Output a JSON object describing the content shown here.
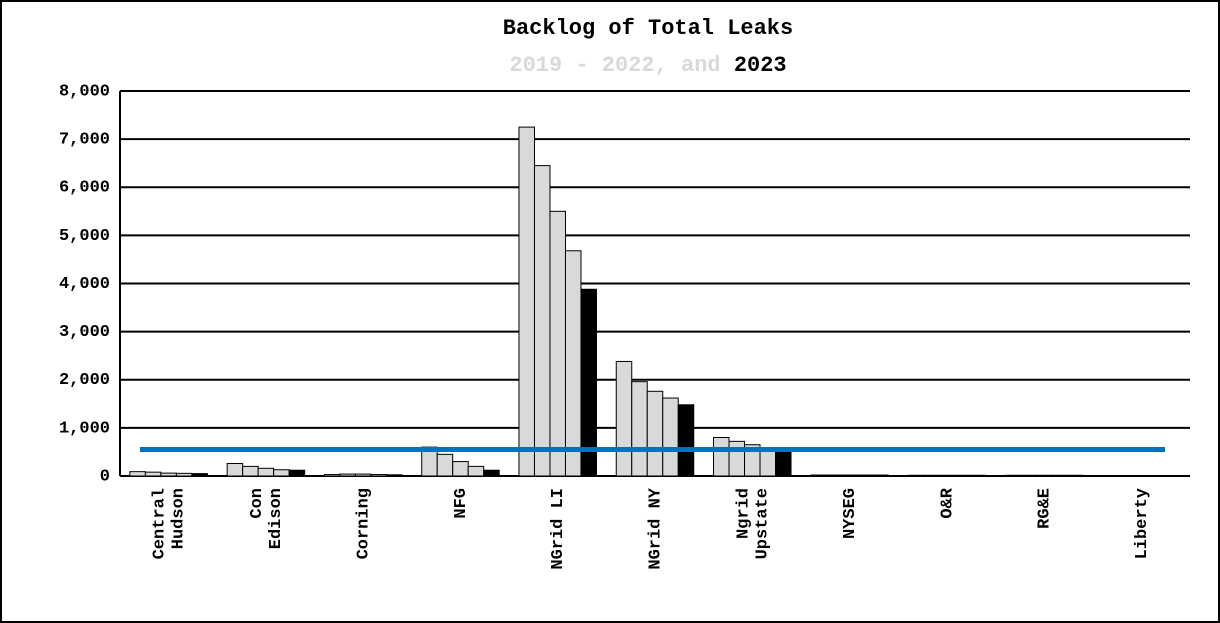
{
  "chart_data": {
    "type": "bar",
    "title": "Backlog of Total Leaks",
    "subtitle": [
      "2019 - 2022, and",
      "2023"
    ],
    "subtitle_colors": [
      "#d9d9d9",
      "#000000"
    ],
    "categories": [
      [
        "Central",
        "Hudson"
      ],
      [
        "Con",
        "Edison"
      ],
      [
        "Corning"
      ],
      [
        "NFG"
      ],
      [
        "NGrid LI"
      ],
      [
        "NGrid NY"
      ],
      [
        "Ngrid",
        "Upstate"
      ],
      [
        "NYSEG"
      ],
      [
        "O&R"
      ],
      [
        "RG&E"
      ],
      [
        "Liberty"
      ]
    ],
    "series": [
      {
        "color": "#d9d9d9",
        "values": [
          90,
          260,
          30,
          600,
          7250,
          2380,
          800,
          20,
          15,
          15,
          0
        ]
      },
      {
        "color": "#d9d9d9",
        "values": [
          80,
          200,
          40,
          450,
          6450,
          1960,
          720,
          20,
          15,
          15,
          0
        ]
      },
      {
        "color": "#d9d9d9",
        "values": [
          60,
          160,
          40,
          300,
          5500,
          1760,
          650,
          20,
          15,
          15,
          0
        ]
      },
      {
        "color": "#d9d9d9",
        "values": [
          55,
          130,
          30,
          200,
          4680,
          1620,
          560,
          20,
          15,
          15,
          10
        ]
      },
      {
        "color": "#000000",
        "values": [
          50,
          120,
          25,
          120,
          3880,
          1480,
          540,
          20,
          15,
          15,
          10
        ]
      }
    ],
    "reference_line": {
      "value": 550,
      "color": "#0070c0"
    },
    "ylim": [
      0,
      8000
    ],
    "yticks": [
      0,
      {
        "value": 1000,
        "label": "1,000"
      },
      {
        "value": 2000,
        "label": "2,000"
      },
      {
        "value": 3000,
        "label": "3,000"
      },
      {
        "value": 4000,
        "label": "4,000"
      },
      {
        "value": 5000,
        "label": "5,000"
      },
      {
        "value": 6000,
        "label": "6,000"
      },
      {
        "value": 7000,
        "label": "7,000"
      },
      {
        "value": 8000,
        "label": "8,000"
      }
    ],
    "grid": true
  }
}
